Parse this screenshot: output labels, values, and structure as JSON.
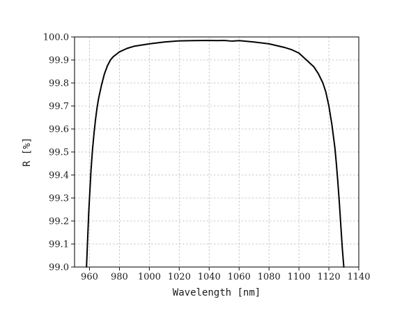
{
  "chart_data": {
    "type": "line",
    "title": "",
    "xlabel": "Wavelength [nm]",
    "ylabel": "R [%]",
    "xlim": [
      950,
      1140
    ],
    "ylim": [
      99.0,
      100.0
    ],
    "x_ticks": [
      960,
      980,
      1000,
      1020,
      1040,
      1060,
      1080,
      1100,
      1120,
      1140
    ],
    "x_tick_labels": [
      "960",
      "980",
      "1000",
      "1020",
      "1040",
      "1060",
      "1080",
      "1100",
      "1120",
      "1140"
    ],
    "y_ticks": [
      99.0,
      99.1,
      99.2,
      99.3,
      99.4,
      99.5,
      99.6,
      99.7,
      99.8,
      99.9,
      100.0
    ],
    "y_tick_labels": [
      "99.0",
      "99.1",
      "99.2",
      "99.3",
      "99.4",
      "99.5",
      "99.6",
      "99.7",
      "99.8",
      "99.9",
      "100.0"
    ],
    "grid": true,
    "legend": "none",
    "line_color": "#000000",
    "series": [
      {
        "x": [
          958,
          958.5,
          959,
          959.5,
          960,
          961,
          962,
          963,
          964,
          965,
          966,
          968,
          970,
          972,
          974,
          976,
          978,
          980,
          985,
          990,
          1000,
          1010,
          1020,
          1030,
          1040,
          1045,
          1050,
          1055,
          1060,
          1065,
          1070,
          1080,
          1090,
          1095,
          1100,
          1105,
          1110,
          1113,
          1116,
          1118,
          1120,
          1122,
          1124,
          1125,
          1126,
          1127,
          1128,
          1129,
          1129.5,
          1130
        ],
        "y": [
          99.0,
          99.08,
          99.16,
          99.24,
          99.3,
          99.42,
          99.51,
          99.58,
          99.64,
          99.69,
          99.73,
          99.79,
          99.84,
          99.875,
          99.9,
          99.915,
          99.925,
          99.935,
          99.95,
          99.96,
          99.97,
          99.978,
          99.983,
          99.984,
          99.985,
          99.984,
          99.985,
          99.982,
          99.984,
          99.981,
          99.978,
          99.97,
          99.955,
          99.945,
          99.93,
          99.9,
          99.87,
          99.84,
          99.8,
          99.76,
          99.7,
          99.62,
          99.52,
          99.45,
          99.37,
          99.28,
          99.18,
          99.08,
          99.04,
          99.0
        ]
      }
    ]
  }
}
